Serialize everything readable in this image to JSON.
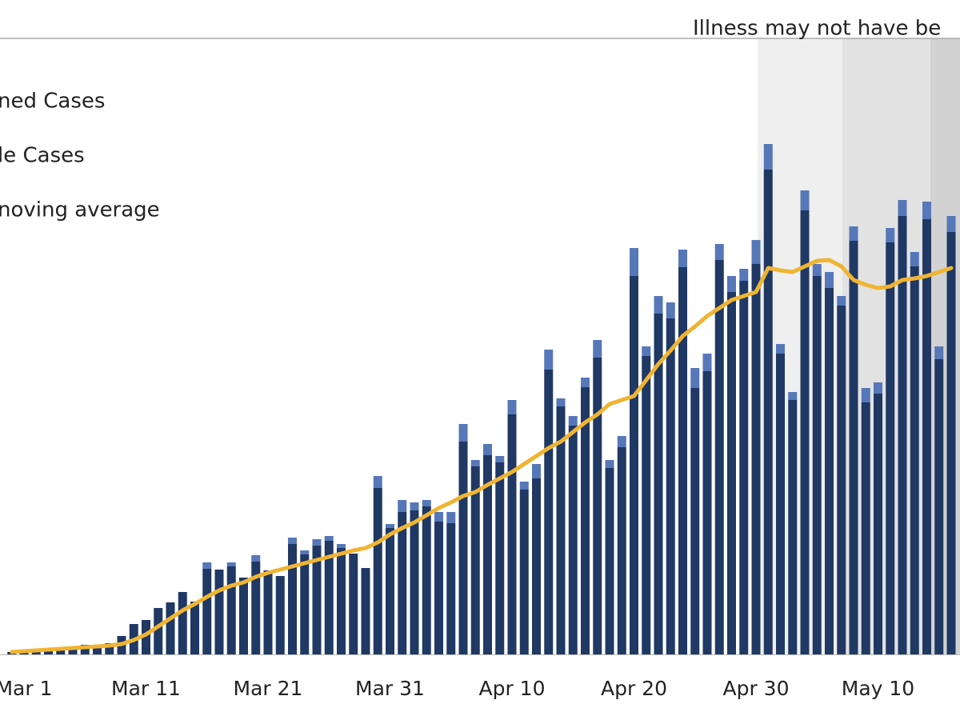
{
  "chart_data": {
    "type": "bar",
    "annotation": "Illness may not have be",
    "categories": [
      null,
      "Mar 1",
      null,
      null,
      null,
      null,
      null,
      null,
      null,
      null,
      null,
      "Mar 11",
      null,
      null,
      null,
      null,
      null,
      null,
      null,
      null,
      null,
      "Mar 21",
      null,
      null,
      null,
      null,
      null,
      null,
      null,
      null,
      null,
      "Mar 31",
      null,
      null,
      null,
      null,
      null,
      null,
      null,
      null,
      null,
      "Apr 10",
      null,
      null,
      null,
      null,
      null,
      null,
      null,
      null,
      null,
      "Apr 20",
      null,
      null,
      null,
      null,
      null,
      null,
      null,
      null,
      null,
      "Apr 30",
      null,
      null,
      null,
      null,
      null,
      null,
      null,
      null,
      null,
      "May 10",
      null,
      null,
      null,
      null,
      null,
      null
    ],
    "ylim": [
      0,
      770
    ],
    "series": [
      {
        "name": "ned Cases",
        "color": "#1f3864",
        "values": [
          3,
          5,
          7,
          8,
          8,
          10,
          12,
          12,
          14,
          23,
          38,
          43,
          58,
          65,
          78,
          66,
          107,
          106,
          110,
          96,
          116,
          105,
          98,
          138,
          125,
          136,
          142,
          133,
          126,
          108,
          208,
          158,
          178,
          180,
          185,
          166,
          164,
          266,
          235,
          249,
          240,
          300,
          206,
          220,
          356,
          310,
          286,
          334,
          371,
          233,
          259,
          473,
          373,
          426,
          420,
          484,
          333,
          354,
          493,
          453,
          467,
          488,
          606,
          376,
          318,
          555,
          473,
          458,
          436,
          517,
          315,
          326,
          515,
          548,
          485,
          544,
          369,
          528
        ]
      },
      {
        "name": "le Cases",
        "color": "#5677b8",
        "values": [
          0,
          0,
          0,
          0,
          0,
          0,
          0,
          0,
          0,
          0,
          0,
          0,
          0,
          0,
          0,
          0,
          8,
          0,
          5,
          0,
          8,
          0,
          0,
          8,
          5,
          8,
          6,
          5,
          0,
          0,
          15,
          5,
          15,
          10,
          8,
          12,
          14,
          22,
          8,
          14,
          8,
          18,
          10,
          18,
          25,
          10,
          12,
          12,
          22,
          10,
          14,
          35,
          12,
          22,
          20,
          22,
          25,
          22,
          20,
          20,
          15,
          30,
          32,
          12,
          10,
          25,
          15,
          20,
          12,
          18,
          18,
          14,
          18,
          20,
          18,
          22,
          16,
          20
        ]
      },
      {
        "name": "noving average",
        "type": "line",
        "color": "#f0b433",
        "values": [
          3,
          4,
          5,
          6,
          7,
          8,
          9,
          10,
          11,
          13,
          18,
          25,
          35,
          45,
          55,
          63,
          72,
          80,
          86,
          90,
          97,
          102,
          106,
          110,
          114,
          118,
          122,
          126,
          130,
          133,
          140,
          150,
          158,
          165,
          174,
          183,
          190,
          198,
          203,
          212,
          220,
          228,
          238,
          248,
          258,
          266,
          278,
          290,
          300,
          313,
          318,
          323,
          343,
          363,
          380,
          398,
          410,
          423,
          433,
          443,
          448,
          453,
          483,
          480,
          478,
          485,
          492,
          493,
          485,
          468,
          462,
          458,
          460,
          468,
          470,
          473,
          478,
          483
        ]
      }
    ]
  }
}
